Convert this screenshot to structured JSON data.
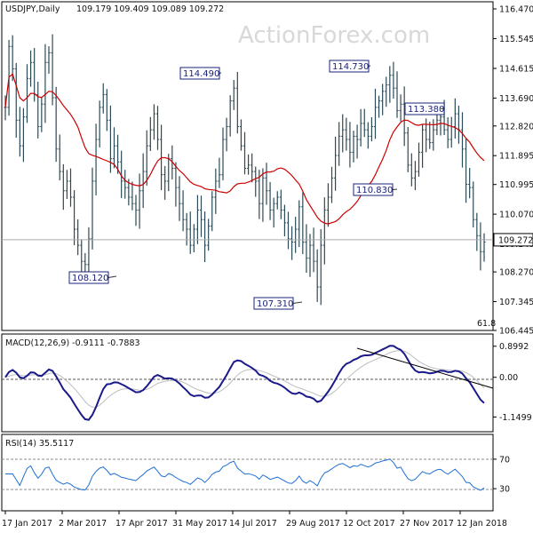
{
  "chart_data": [
    {
      "type": "ohlc",
      "panel": "price",
      "symbol_header": "USDJPY,Daily",
      "last_ohlc": "109.179 109.409 109.089 109.272",
      "watermark": "ActionForex.com",
      "y_ticks": [
        "116.470",
        "115.545",
        "114.615",
        "113.690",
        "112.820",
        "111.895",
        "110.995",
        "110.070",
        "109.140",
        "108.270",
        "107.345",
        "106.445"
      ],
      "y_tick_values": [
        116.47,
        115.545,
        114.615,
        113.69,
        112.82,
        111.895,
        110.995,
        110.07,
        109.14,
        108.27,
        107.345,
        106.445
      ],
      "ylim": [
        106.445,
        116.47
      ],
      "current_price_label": "109.272",
      "current_price": 109.272,
      "x_ticks": [
        "17 Jan 2017",
        "2 Mar 2017",
        "17 Apr 2017",
        "31 May 2017",
        "14 Jul 2017",
        "29 Aug 2017",
        "12 Oct 2017",
        "27 Nov 2017",
        "12 Jan 2018"
      ],
      "annotations": [
        {
          "label": "114.490",
          "value": 114.49,
          "date": "2017-06-01"
        },
        {
          "label": "108.120",
          "value": 108.12,
          "date": "2017-04-17"
        },
        {
          "label": "107.310",
          "value": 107.31,
          "date": "2017-09-08"
        },
        {
          "label": "114.730",
          "value": 114.73,
          "date": "2017-11-06"
        },
        {
          "label": "113.380",
          "value": 113.38,
          "date": "2017-12-12"
        },
        {
          "label": "110.830",
          "value": 110.83,
          "date": "2017-11-27"
        }
      ],
      "fib_label": "61.8",
      "series": [
        {
          "close": [
            113.4,
            115.3,
            114.6,
            113.0,
            112.2,
            113.1,
            114.3,
            114.8,
            113.8,
            112.8,
            113.5,
            114.8,
            115.1,
            113.7,
            112.1,
            111.4,
            110.8,
            111.1,
            110.6,
            109.6,
            109.1,
            108.6,
            108.5,
            109.3,
            111.1,
            112.4,
            113.4,
            113.8,
            113.0,
            111.8,
            112.2,
            111.7,
            111.1,
            110.9,
            110.6,
            110.4,
            110.2,
            110.8,
            111.4,
            112.2,
            112.7,
            113.2,
            112.4,
            111.3,
            111.1,
            111.8,
            111.5,
            110.9,
            110.4,
            109.9,
            109.6,
            109.1,
            109.6,
            110.2,
            109.9,
            109.1,
            109.7,
            110.6,
            111.1,
            111.3,
            112.4,
            112.8,
            113.6,
            114.0,
            112.8,
            112.2,
            111.5,
            111.6,
            111.4,
            111.1,
            110.4,
            111.2,
            110.8,
            110.2,
            110.4,
            110.6,
            110.2,
            109.8,
            109.3,
            109.2,
            109.6,
            110.3,
            109.2,
            108.7,
            109.1,
            108.6,
            107.8,
            109.1,
            110.2,
            110.6,
            111.2,
            111.9,
            112.5,
            112.7,
            112.4,
            112.0,
            112.5,
            112.4,
            112.9,
            112.7,
            112.5,
            112.8,
            113.4,
            113.6,
            113.9,
            114.1,
            114.4,
            114.0,
            113.3,
            113.5,
            112.6,
            111.6,
            111.2,
            111.4,
            112.0,
            112.7,
            112.4,
            112.3,
            112.7,
            113.0,
            113.1,
            112.7,
            112.4,
            112.8,
            113.2,
            112.7,
            112.1,
            111.0,
            110.9,
            109.9,
            109.4,
            108.9,
            109.2
          ]
        }
      ]
    },
    {
      "type": "line",
      "panel": "macd",
      "label": "MACD(12,26,9) -0.9111 -0.7883",
      "y_ticks": [
        "0.8992",
        "0.00",
        "-1.1499"
      ],
      "y_tick_values": [
        0.8992,
        0.0,
        -1.1499
      ],
      "ylim": [
        -1.5,
        1.15
      ]
    },
    {
      "type": "line",
      "panel": "rsi",
      "label": "RSI(14) 35.5117",
      "y_ticks": [
        "70",
        "30"
      ],
      "y_tick_values": [
        70,
        30
      ],
      "ylim": [
        0,
        100
      ]
    }
  ],
  "colors": {
    "bars": "#2c4a55",
    "ma": "#cc0000",
    "macd": "#1a1a8a",
    "signal": "#bdbdbd",
    "rsi": "#1e6fd6",
    "annot": "#1a237e"
  }
}
